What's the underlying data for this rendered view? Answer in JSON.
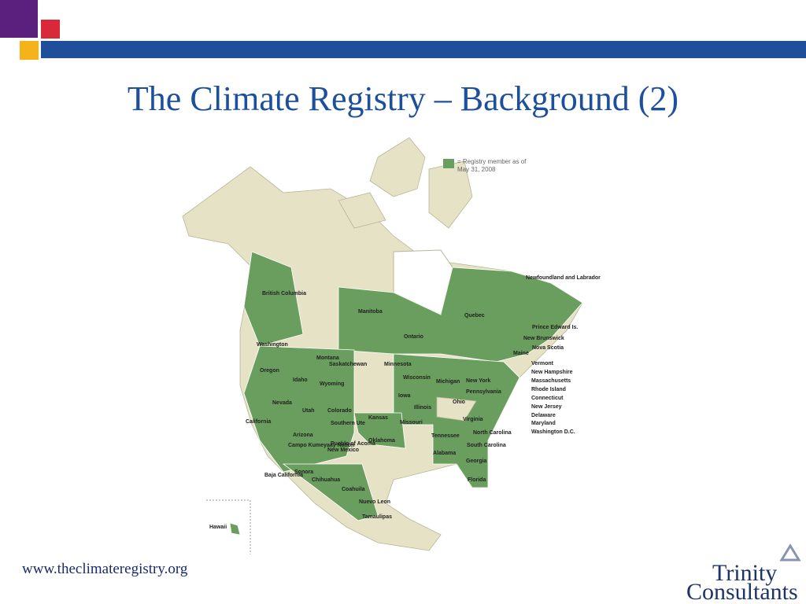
{
  "header": {
    "title": "The Climate Registry – Background (2)"
  },
  "map": {
    "legend": [
      "= Registry member as of",
      "May 31, 2008"
    ],
    "labels": [
      "British Columbia",
      "Saskatchewan",
      "Manitoba",
      "Ontario",
      "Quebec",
      "Newfoundland and Labrador",
      "Prince Edward Is.",
      "New Brunswick",
      "Nova Scotia",
      "Washington",
      "Oregon",
      "Idaho",
      "Montana",
      "Wyoming",
      "Nevada",
      "California",
      "Utah",
      "Colorado",
      "Arizona",
      "New Mexico",
      "Kansas",
      "Oklahoma",
      "Missouri",
      "Iowa",
      "Illinois",
      "Wisconsin",
      "Minnesota",
      "Michigan",
      "Ohio",
      "New York",
      "Pennsylvania",
      "Virginia",
      "North Carolina",
      "South Carolina",
      "Tennessee",
      "Alabama",
      "Georgia",
      "Florida",
      "Maine",
      "Vermont",
      "New Hampshire",
      "Massachusetts",
      "Rhode Island",
      "Connecticut",
      "New Jersey",
      "Delaware",
      "Maryland",
      "Washington D.C.",
      "Southern Ute",
      "Pueblo of Acoma",
      "Campo Kumeyaay Nation",
      "Baja California",
      "Sonora",
      "Chihuahua",
      "Coahuila",
      "Nuevo Leon",
      "Tamaulipas",
      "Hawaii"
    ]
  },
  "footer": {
    "url": "www.theclimateregistry.org",
    "logo": [
      "Trinity",
      "Consultants"
    ]
  }
}
